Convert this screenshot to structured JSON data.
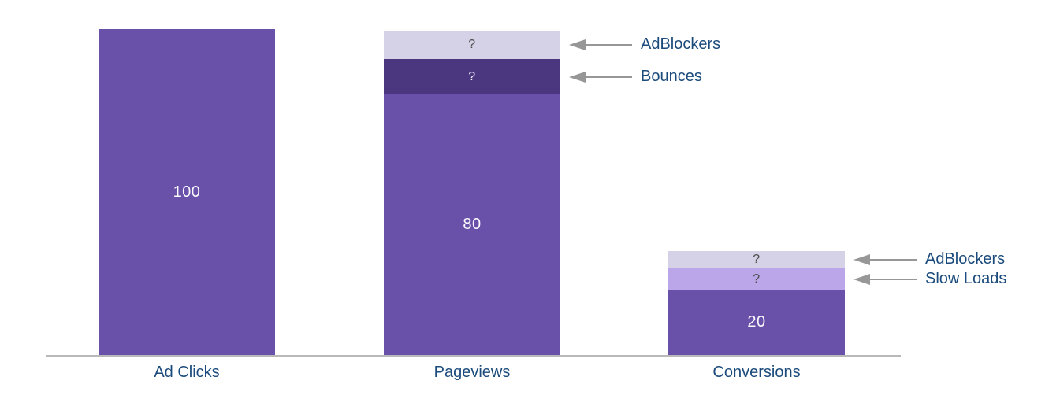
{
  "chart_data": {
    "type": "bar",
    "stacked": true,
    "title": "",
    "xlabel": "",
    "ylabel": "",
    "ylim": [
      0,
      100
    ],
    "grid": false,
    "legend": false,
    "categories": [
      "Ad Clicks",
      "Pageviews",
      "Conversions"
    ],
    "bars": [
      {
        "category": "Ad Clicks",
        "segments": [
          {
            "name": "ad-clicks-total",
            "label": "100",
            "value": 100,
            "color": "#6950a8",
            "label_color": "#fbfaff"
          }
        ]
      },
      {
        "category": "Pageviews",
        "segments": [
          {
            "name": "pageviews-total",
            "label": "80",
            "value": 80,
            "color": "#6950a8",
            "label_color": "#fbfaff"
          },
          {
            "name": "bounces",
            "label": "?",
            "value_est": 10.8,
            "color": "#4b3780",
            "label_color": "#f1eefa",
            "annotation": "Bounces"
          },
          {
            "name": "adblockers",
            "label": "?",
            "value_est": 8.7,
            "color": "#d5d1e6",
            "label_color": "#4d4d4d",
            "annotation": "AdBlockers"
          }
        ]
      },
      {
        "category": "Conversions",
        "segments": [
          {
            "name": "conversions-total",
            "label": "20",
            "value": 20,
            "color": "#6950a8",
            "label_color": "#fbfaff"
          },
          {
            "name": "slow-loads",
            "label": "?",
            "value_est": 6.6,
            "color": "#bba6ea",
            "label_color": "#4d4d4d",
            "annotation": "Slow Loads"
          },
          {
            "name": "adblockers",
            "label": "?",
            "value_est": 5.3,
            "color": "#d5d1e6",
            "label_color": "#4d4d4d",
            "annotation": "AdBlockers"
          }
        ]
      }
    ],
    "colors": {
      "bar_main": "#6950a8",
      "segment_dark": "#4b3780",
      "segment_light": "#d5d1e6",
      "segment_medium": "#bba6ea",
      "category_text": "#1b4b7c",
      "annotation_text": "#1b4b7c",
      "arrow": "#979797",
      "axis_line": "#b9b9b9",
      "value_text": "#fbfaff",
      "question_text_dark": "#4d4d4d"
    }
  }
}
